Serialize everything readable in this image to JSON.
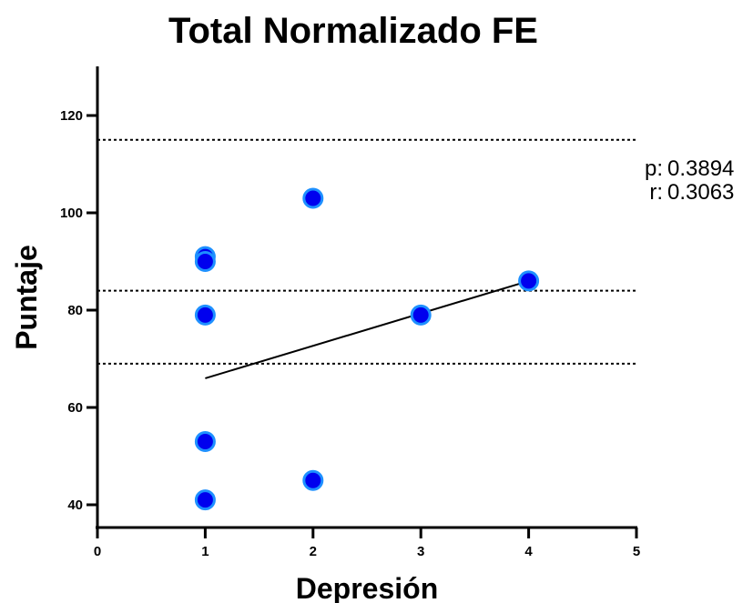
{
  "chart_data": {
    "type": "scatter",
    "title": "Total Normalizado FE",
    "xlabel": "Depresión",
    "ylabel": "Puntaje",
    "xlim": [
      0,
      5
    ],
    "ylim": [
      35,
      130
    ],
    "xticks": [
      "0",
      "1",
      "2",
      "3",
      "4",
      "5"
    ],
    "yticks": [
      "40",
      "60",
      "80",
      "100",
      "120"
    ],
    "points": [
      {
        "x": 1,
        "y": 91
      },
      {
        "x": 1,
        "y": 90
      },
      {
        "x": 1,
        "y": 79
      },
      {
        "x": 1,
        "y": 53
      },
      {
        "x": 1,
        "y": 41
      },
      {
        "x": 2,
        "y": 103
      },
      {
        "x": 2,
        "y": 45
      },
      {
        "x": 3,
        "y": 79
      },
      {
        "x": 4,
        "y": 86
      }
    ],
    "regression_line": {
      "x": [
        1,
        4
      ],
      "y": [
        66,
        86
      ]
    },
    "reference_lines": [
      115,
      84,
      69
    ],
    "stats": {
      "p_label": "p:",
      "p_value": "0.3894",
      "r_label": "r:",
      "r_value": "0.3063"
    },
    "grid": false,
    "point_color": "#0000ee",
    "point_edge_color": "#1e90ff"
  }
}
